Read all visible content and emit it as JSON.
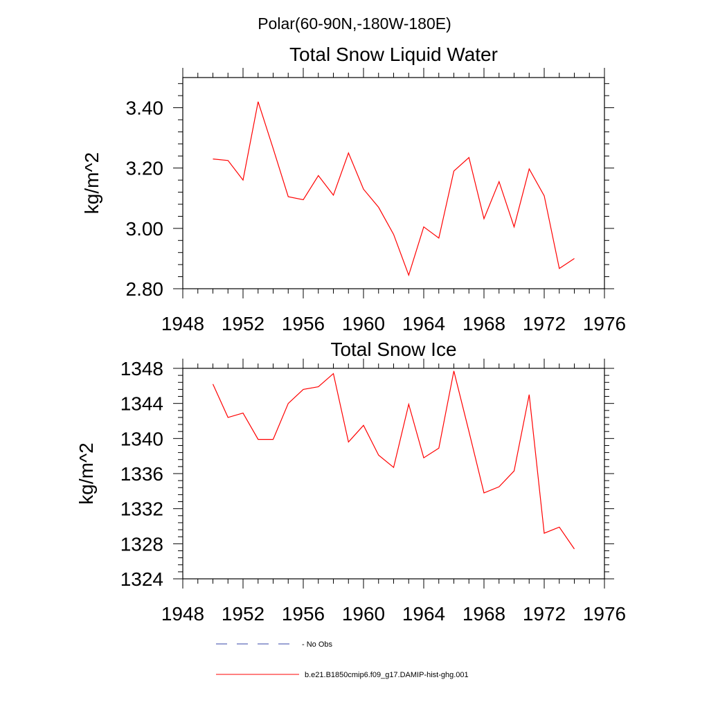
{
  "page_title": "Polar(60-90N,-180W-180E)",
  "chart_data": [
    {
      "type": "line",
      "title": "Total Snow Liquid Water",
      "xlabel": "",
      "ylabel": "kg/m^2",
      "xlim": [
        1948,
        1976
      ],
      "ylim": [
        2.8,
        3.5
      ],
      "xticks": [
        1948,
        1952,
        1956,
        1960,
        1964,
        1968,
        1972,
        1976
      ],
      "yticks": [
        2.8,
        3.0,
        3.2,
        3.4
      ],
      "ytick_labels": [
        "2.80",
        "3.00",
        "3.20",
        "3.40"
      ],
      "grid": false,
      "series": [
        {
          "name": "b.e21.B1850cmip6.f09_g17.DAMIP-hist-ghg.001",
          "color": "#ff0000",
          "x": [
            1950,
            1951,
            1952,
            1953,
            1954,
            1955,
            1956,
            1957,
            1958,
            1959,
            1960,
            1961,
            1962,
            1963,
            1964,
            1965,
            1966,
            1967,
            1968,
            1969,
            1970,
            1971,
            1972,
            1973,
            1974
          ],
          "y": [
            3.23,
            3.225,
            3.16,
            3.42,
            3.265,
            3.105,
            3.095,
            3.175,
            3.11,
            3.25,
            3.13,
            3.07,
            2.98,
            2.845,
            3.005,
            2.968,
            3.19,
            3.235,
            3.032,
            3.155,
            3.005,
            3.197,
            3.108,
            2.867,
            2.9
          ]
        }
      ]
    },
    {
      "type": "line",
      "title": "Total Snow Ice",
      "xlabel": "",
      "ylabel": "kg/m^2",
      "xlim": [
        1948,
        1976
      ],
      "ylim": [
        1324,
        1348
      ],
      "xticks": [
        1948,
        1952,
        1956,
        1960,
        1964,
        1968,
        1972,
        1976
      ],
      "yticks": [
        1324,
        1328,
        1332,
        1336,
        1340,
        1344,
        1348
      ],
      "ytick_labels": [
        "1324",
        "1328",
        "1332",
        "1336",
        "1340",
        "1344",
        "1348"
      ],
      "grid": false,
      "series": [
        {
          "name": "b.e21.B1850cmip6.f09_g17.DAMIP-hist-ghg.001",
          "color": "#ff0000",
          "x": [
            1950,
            1951,
            1952,
            1953,
            1954,
            1955,
            1956,
            1957,
            1958,
            1959,
            1960,
            1961,
            1962,
            1963,
            1964,
            1965,
            1966,
            1967,
            1968,
            1969,
            1970,
            1971,
            1972,
            1973,
            1974
          ],
          "y": [
            1346.2,
            1342.4,
            1342.9,
            1339.9,
            1339.9,
            1344.0,
            1345.6,
            1345.9,
            1347.4,
            1339.6,
            1341.5,
            1338.1,
            1336.7,
            1343.9,
            1337.8,
            1338.9,
            1347.7,
            1340.8,
            1333.8,
            1334.5,
            1336.3,
            1345.0,
            1329.2,
            1329.9,
            1327.4
          ]
        }
      ]
    }
  ],
  "legend": {
    "placement": "bottom",
    "items": [
      {
        "label": "No Obs",
        "color": "#3344aa",
        "style": "dashed"
      },
      {
        "label": "b.e21.B1850cmip6.f09_g17.DAMIP-hist-ghg.001",
        "color": "#ff0000",
        "style": "solid"
      }
    ]
  }
}
